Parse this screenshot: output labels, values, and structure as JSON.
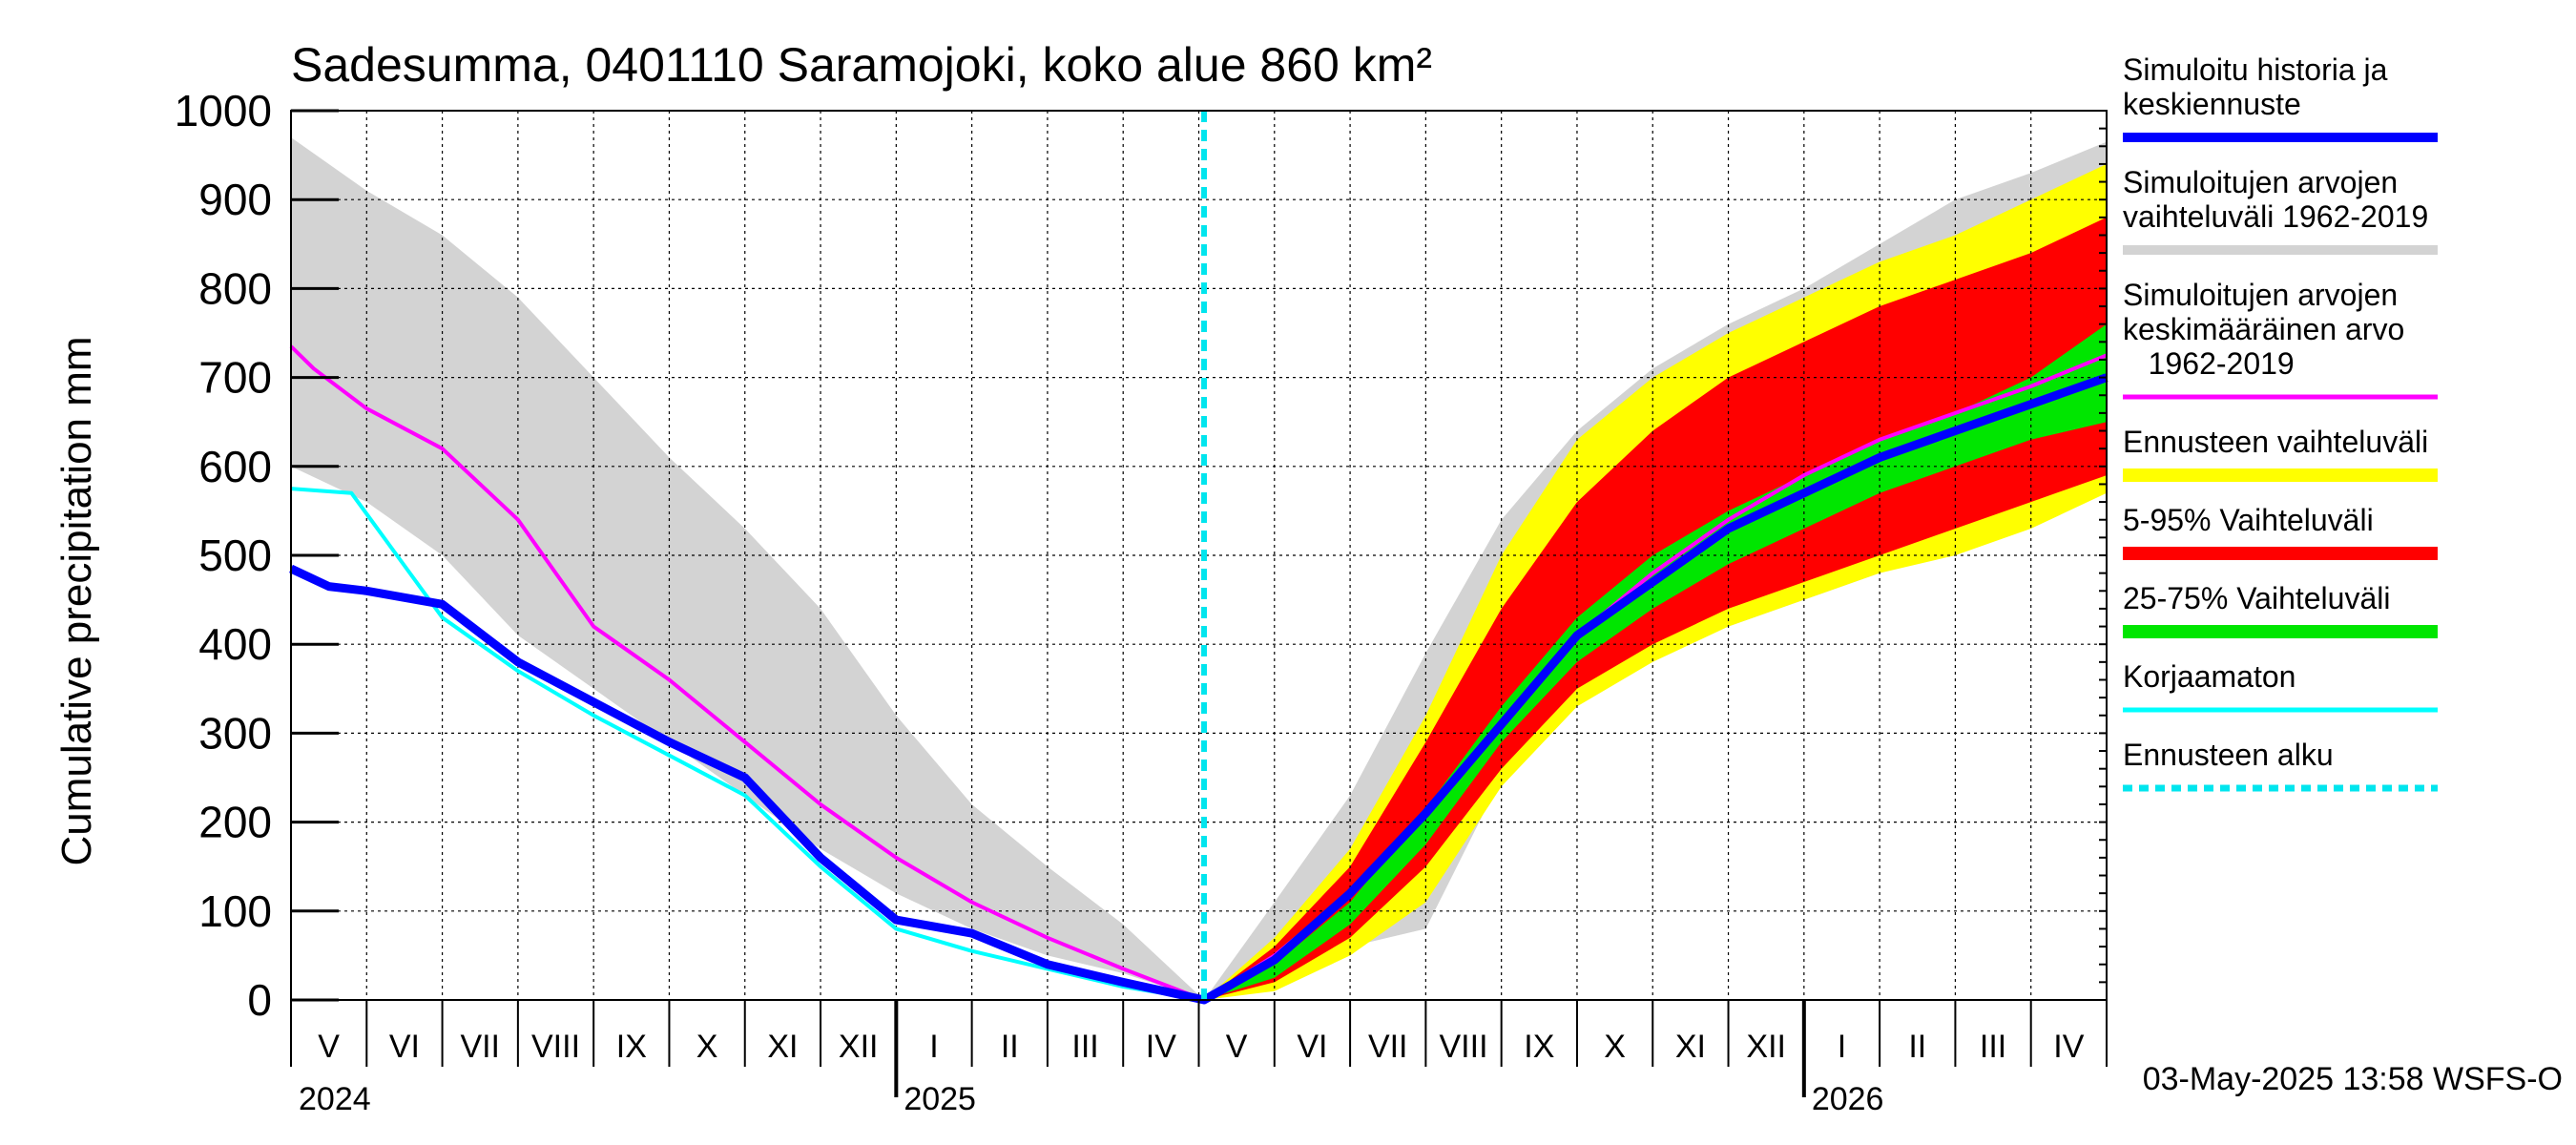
{
  "chart_data": {
    "type": "area",
    "title": "Sadesumma, 0401110 Saramojoki, koko alue 860 km²",
    "ylabel": "Cumulative precipitation   mm",
    "xlabel": "",
    "ylim": [
      0,
      1000
    ],
    "y_ticks": [
      "0",
      "100",
      "200",
      "300",
      "400",
      "500",
      "600",
      "700",
      "800",
      "900",
      "1000"
    ],
    "x_unit": "months since 2024-05-01",
    "xlim": [
      0,
      24
    ],
    "month_labels": [
      "V",
      "VI",
      "VII",
      "VIII",
      "IX",
      "X",
      "XI",
      "XII",
      "I",
      "II",
      "III",
      "IV",
      "V",
      "VI",
      "VII",
      "VIII",
      "IX",
      "X",
      "XI",
      "XII",
      "I",
      "II",
      "III",
      "IV"
    ],
    "year_labels": [
      {
        "text": "2024",
        "x": 0
      },
      {
        "text": "2025",
        "x": 8
      },
      {
        "text": "2026",
        "x": 20
      }
    ],
    "forecast_start": 12.07,
    "grid": true,
    "series": [
      {
        "name": "Simuloitujen arvojen vaihteluväli 1962-2019",
        "kind": "band",
        "color": "#d3d3d3",
        "x": [
          0,
          1,
          2,
          3,
          4,
          5,
          6,
          7,
          8,
          9,
          10,
          11,
          12.07,
          13,
          14,
          15,
          16,
          17,
          18,
          19,
          20,
          21,
          22,
          23,
          24
        ],
        "upper": [
          970,
          910,
          860,
          790,
          700,
          610,
          530,
          440,
          320,
          220,
          150,
          85,
          0,
          110,
          230,
          390,
          540,
          640,
          710,
          760,
          800,
          850,
          900,
          930,
          965
        ],
        "lower": [
          600,
          560,
          500,
          410,
          350,
          290,
          230,
          170,
          120,
          80,
          50,
          30,
          0,
          30,
          60,
          80,
          250,
          340,
          390,
          420,
          450,
          480,
          510,
          540,
          570
        ]
      },
      {
        "name": "Ennusteen vaihteluväli",
        "kind": "band",
        "color": "#ffff00",
        "x": [
          12.07,
          13,
          14,
          15,
          16,
          17,
          18,
          19,
          20,
          21,
          22,
          23,
          24
        ],
        "upper": [
          0,
          70,
          170,
          320,
          500,
          630,
          700,
          750,
          790,
          830,
          860,
          900,
          940
        ],
        "lower": [
          0,
          10,
          50,
          110,
          240,
          330,
          380,
          420,
          450,
          480,
          500,
          530,
          570
        ]
      },
      {
        "name": "5-95% Vaihteluväli",
        "kind": "band",
        "color": "#ff0000",
        "x": [
          12.07,
          13,
          14,
          15,
          16,
          17,
          18,
          19,
          20,
          21,
          22,
          23,
          24
        ],
        "upper": [
          0,
          60,
          150,
          290,
          440,
          560,
          640,
          700,
          740,
          780,
          810,
          840,
          880
        ],
        "lower": [
          0,
          20,
          70,
          150,
          260,
          350,
          400,
          440,
          470,
          500,
          530,
          560,
          590
        ]
      },
      {
        "name": "25-75% Vaihteluväli",
        "kind": "band",
        "color": "#00e600",
        "x": [
          12.07,
          13,
          14,
          15,
          16,
          17,
          18,
          19,
          20,
          21,
          22,
          23,
          24
        ],
        "upper": [
          0,
          40,
          110,
          215,
          330,
          430,
          500,
          550,
          590,
          630,
          660,
          700,
          760
        ],
        "lower": [
          0,
          25,
          85,
          175,
          290,
          380,
          440,
          490,
          530,
          570,
          600,
          630,
          650
        ]
      },
      {
        "name": "Simuloitujen arvojen keskimääräinen arvo 1962-2019",
        "kind": "line",
        "color": "#ff00ff",
        "x": [
          0,
          0.3,
          1,
          2,
          3,
          3.5,
          4,
          5,
          6,
          7,
          8,
          9,
          10,
          11,
          12.07,
          13,
          14,
          15,
          16,
          17,
          18,
          19,
          20,
          21,
          22,
          23,
          24
        ],
        "y": [
          735,
          710,
          665,
          620,
          540,
          480,
          420,
          360,
          290,
          220,
          160,
          110,
          70,
          35,
          0,
          50,
          120,
          210,
          310,
          410,
          480,
          540,
          590,
          630,
          660,
          690,
          725
        ]
      },
      {
        "name": "Korjaamaton",
        "kind": "line",
        "color": "#00ffff",
        "x": [
          0,
          0.8,
          1.4,
          2,
          3,
          4,
          5,
          6,
          7,
          8,
          9,
          10,
          11,
          12.07
        ],
        "y": [
          575,
          570,
          500,
          430,
          370,
          320,
          275,
          230,
          150,
          80,
          55,
          35,
          15,
          0
        ]
      },
      {
        "name": "Simuloitu historia ja keskiennuste",
        "kind": "line",
        "color": "#0000ff",
        "x": [
          0,
          0.5,
          1,
          2,
          3,
          4,
          5,
          6,
          7,
          8,
          9,
          10,
          11,
          12.07,
          13,
          14,
          15,
          16,
          17,
          18,
          19,
          20,
          21,
          22,
          23,
          24
        ],
        "y": [
          485,
          465,
          460,
          445,
          380,
          335,
          290,
          250,
          160,
          90,
          75,
          40,
          20,
          0,
          45,
          120,
          210,
          310,
          410,
          470,
          530,
          570,
          610,
          640,
          670,
          700
        ]
      }
    ],
    "legend_placement": "right"
  },
  "legend": {
    "items": [
      {
        "lines": [
          "Simuloitu historia ja",
          "keskiennuste"
        ],
        "color": "#0000ff",
        "style": "thick"
      },
      {
        "lines": [
          "Simuloitujen arvojen",
          "vaihteluväli 1962-2019"
        ],
        "color": "#d3d3d3",
        "style": "thick"
      },
      {
        "lines": [
          "Simuloitujen arvojen",
          "keskimääräinen arvo",
          "   1962-2019"
        ],
        "color": "#ff00ff",
        "style": "thin"
      },
      {
        "lines": [
          "Ennusteen vaihteluväli"
        ],
        "color": "#ffff00",
        "style": "band"
      },
      {
        "lines": [
          "5-95% Vaihteluväli"
        ],
        "color": "#ff0000",
        "style": "band"
      },
      {
        "lines": [
          "25-75% Vaihteluväli"
        ],
        "color": "#00e600",
        "style": "band"
      },
      {
        "lines": [
          "Korjaamaton"
        ],
        "color": "#00ffff",
        "style": "thin"
      },
      {
        "lines": [
          "Ennusteen alku"
        ],
        "color": "#00e5ee",
        "style": "dashed"
      }
    ]
  },
  "footer": {
    "timestamp": "03-May-2025 13:58 WSFS-O"
  }
}
